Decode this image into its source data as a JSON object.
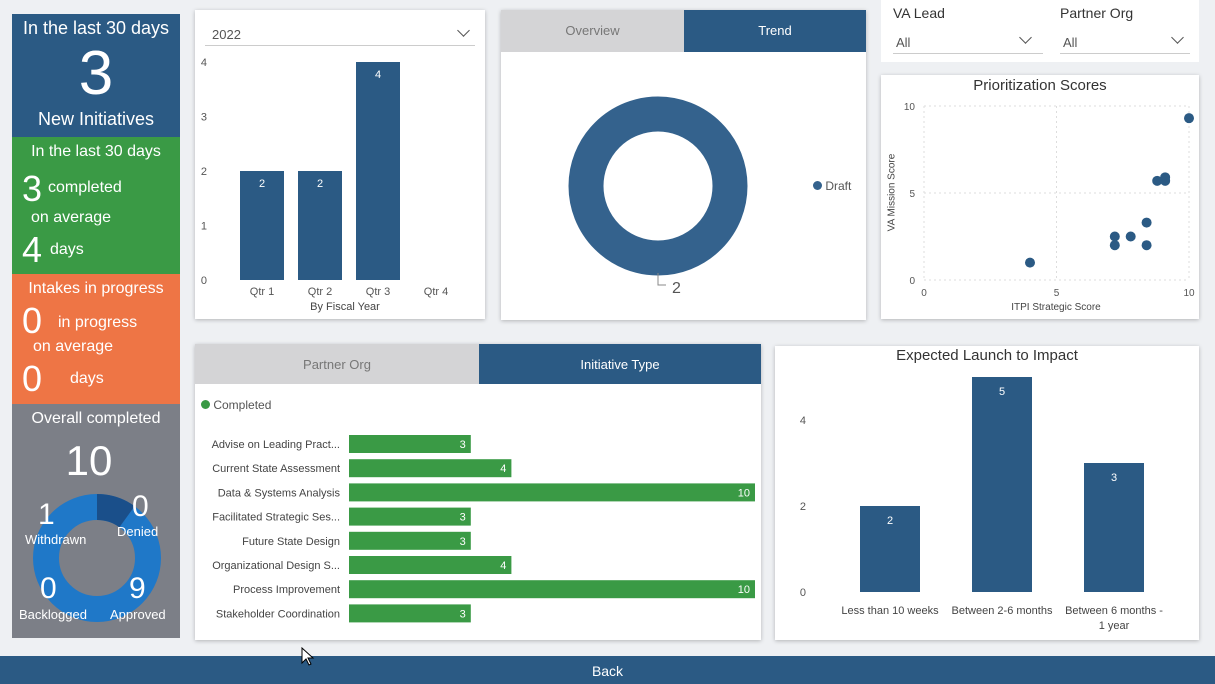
{
  "kpi_new": {
    "heading": "In the last 30 days",
    "value": "3",
    "label": "New Initiatives"
  },
  "kpi_completed": {
    "heading": "In the last 30 days",
    "value": "3",
    "label": "completed",
    "avg_label": "on average",
    "days_value": "4",
    "days_label": "days"
  },
  "kpi_progress": {
    "heading": "Intakes in progress",
    "value": "0",
    "label": "in progress",
    "avg_label": "on average",
    "days_value": "0",
    "days_label": "days"
  },
  "kpi_overall": {
    "heading": "Overall completed",
    "total": "10",
    "withdrawn_value": "1",
    "withdrawn_label": "Withdrawn",
    "denied_value": "0",
    "denied_label": "Denied",
    "backlogged_value": "0",
    "backlogged_label": "Backlogged",
    "approved_value": "9",
    "approved_label": "Approved",
    "colors": {
      "approved": "#1f78c8",
      "withdrawn": "#1a4f8a"
    }
  },
  "year_select": {
    "value": "2022"
  },
  "filters": {
    "va_lead": {
      "label": "VA Lead",
      "value": "All"
    },
    "partner_org": {
      "label": "Partner Org",
      "value": "All"
    }
  },
  "trend_tabs": {
    "overview": "Overview",
    "trend": "Trend"
  },
  "bottom_tabs": {
    "partner_org": "Partner Org",
    "initiative_type": "Initiative Type"
  },
  "footer": {
    "back_label": "Back"
  },
  "chart_data": [
    {
      "type": "bar",
      "xlabel": "By Fiscal Year",
      "categories": [
        "Qtr 1",
        "Qtr 2",
        "Qtr 3",
        "Qtr 4"
      ],
      "values": [
        2,
        2,
        4,
        null
      ],
      "y_ticks": [
        0,
        1,
        2,
        3,
        4
      ],
      "ylim": [
        0,
        4
      ],
      "color": "#2b5a84"
    },
    {
      "type": "pie",
      "donut": true,
      "slices": [
        {
          "name": "Draft",
          "value": 2
        }
      ],
      "legend": "right",
      "color": "#34628d"
    },
    {
      "type": "scatter",
      "title": "Prioritization Scores",
      "xlabel": "ITPI Strategic Score",
      "ylabel": "VA Mission Score",
      "xlim": [
        0,
        10
      ],
      "ylim": [
        0,
        10
      ],
      "x_ticks": [
        0,
        5,
        10
      ],
      "y_ticks": [
        0,
        5,
        10
      ],
      "points": [
        [
          4,
          1
        ],
        [
          7.2,
          2.5
        ],
        [
          7.2,
          2.0
        ],
        [
          7.8,
          2.5
        ],
        [
          8.4,
          3.3
        ],
        [
          8.4,
          2.0
        ],
        [
          8.8,
          5.7
        ],
        [
          9.1,
          5.7
        ],
        [
          9.1,
          5.9
        ],
        [
          10,
          9.3
        ]
      ],
      "color": "#2b5a84"
    },
    {
      "type": "bar",
      "orientation": "horizontal",
      "legend": "top-left",
      "series_name": "Completed",
      "categories": [
        "Advise on Leading Pract...",
        "Current State Assessment",
        "Data & Systems Analysis",
        "Facilitated Strategic Ses...",
        "Future State Design",
        "Organizational Design S...",
        "Process Improvement",
        "Stakeholder Coordination"
      ],
      "values": [
        3,
        4,
        10,
        3,
        3,
        4,
        10,
        3
      ],
      "xlim": [
        0,
        10
      ],
      "color": "#3a9a45"
    },
    {
      "type": "bar",
      "title": "Expected Launch to Impact",
      "categories": [
        "Less than 10 weeks",
        "Between 2-6 months",
        "Between 6 months - 1 year"
      ],
      "values": [
        2,
        5,
        3
      ],
      "y_ticks": [
        0,
        2,
        4
      ],
      "ylim": [
        0,
        5
      ],
      "color": "#2b5a84"
    }
  ]
}
